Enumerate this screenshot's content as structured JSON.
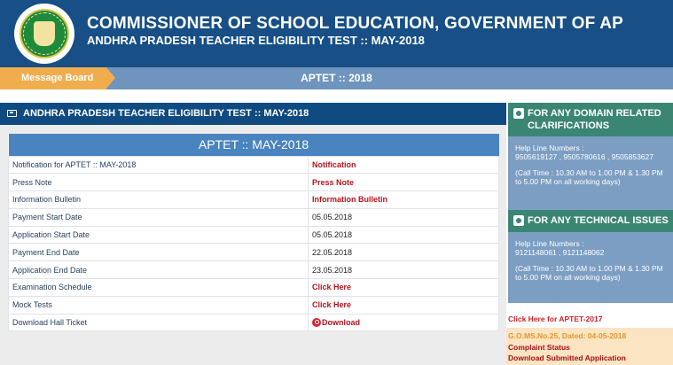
{
  "header": {
    "title": "COMMISSIONER OF SCHOOL EDUCATION, GOVERNMENT OF AP",
    "subtitle": "ANDHRA PRADESH TEACHER ELIGIBILITY TEST  ::  MAY-2018"
  },
  "ribbon": {
    "message_board_label": "Message Board",
    "title": "APTET :: 2018"
  },
  "main": {
    "section_title": "ANDHRA PRADESH TEACHER ELIGIBILITY TEST :: MAY-2018",
    "table_title": "APTET :: MAY-2018",
    "rows": [
      {
        "label": "Notification for APTET :: MAY-2018",
        "value": "Notification",
        "link": true
      },
      {
        "label": "Press Note",
        "value": "Press Note",
        "link": true
      },
      {
        "label": "Information Bulletin",
        "value": "Information Bulletin",
        "link": true
      },
      {
        "label": "Payment Start Date",
        "value": "05.05.2018",
        "link": false
      },
      {
        "label": "Application Start Date",
        "value": "05.05.2018",
        "link": false
      },
      {
        "label": "Payment End Date",
        "value": "22.05.2018",
        "link": false
      },
      {
        "label": "Application End Date",
        "value": "23.05.2018",
        "link": false
      },
      {
        "label": "Examination Schedule",
        "value": "Click Here",
        "link": true
      },
      {
        "label": "Mock Tests",
        "value": "Click Here",
        "link": true
      },
      {
        "label": "Download Hall Ticket",
        "value": "Download",
        "link": true
      }
    ]
  },
  "sidebar": {
    "domain": {
      "title": "FOR ANY DOMAIN RELATED CLARIFICATIONS",
      "helpline_label": "Help Line Numbers :",
      "numbers": "9505619127 , 9505780616 , 9505853627",
      "timing": "(Call Time : 10.30 AM to 1.00 PM & 1.30 PM to 5.00 PM on all working days)"
    },
    "technical": {
      "title": "FOR ANY TECHNICAL ISSUES",
      "helpline_label": "Help Line Numbers :",
      "numbers": "9121148061 , 9121148062",
      "timing": "(Call Time : 10.30 AM to 1.00 PM & 1.30 PM to 5.00 PM on all working days)"
    },
    "aptet2017_link": "Click Here for APTET-2017",
    "gom": "G.O.MS.No.25, Dated: 04-05-2018",
    "complaint_status": "Complaint Status",
    "download_submitted": "Download Submitted Application"
  },
  "icons": {
    "logo": "government-seal-logo",
    "section": "window-icon",
    "phone": "phone-icon",
    "download": "download-icon"
  },
  "colors": {
    "header_bg": "#174f86",
    "accent_orange": "#f0ad4e",
    "link_red": "#b5121b",
    "sidebar_green": "#3a8673",
    "sidebar_blue": "#7d9ec3"
  }
}
